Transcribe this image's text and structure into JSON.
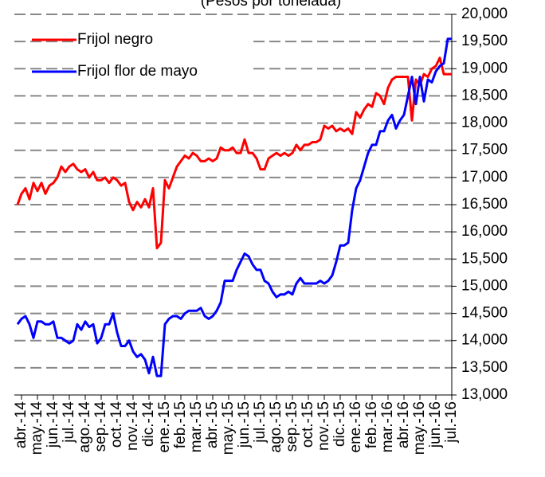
{
  "chart_data": {
    "type": "line",
    "subtitle": "(Pesos por tonelada)",
    "categories": [
      null,
      "abr.-14",
      null,
      null,
      null,
      "may.-14",
      null,
      null,
      null,
      "jun.-14",
      null,
      null,
      null,
      "jul.-14",
      null,
      null,
      null,
      "ago.-14",
      null,
      null,
      null,
      "sep.-14",
      null,
      null,
      null,
      "oct.-14",
      null,
      null,
      null,
      "nov.-14",
      null,
      null,
      null,
      "dic.-14",
      null,
      null,
      null,
      "ene.-15",
      null,
      null,
      null,
      "feb.-15",
      null,
      null,
      null,
      "mar.-15",
      null,
      null,
      null,
      "abr.-15",
      null,
      null,
      null,
      "may.-15",
      null,
      null,
      null,
      "jun.-15",
      null,
      null,
      null,
      "jul.-15",
      null,
      null,
      null,
      "ago.-15",
      null,
      null,
      null,
      "sep.-15",
      null,
      null,
      null,
      "oct.-15",
      null,
      null,
      null,
      "nov.-15",
      null,
      null,
      null,
      "dic.-15",
      null,
      null,
      null,
      "ene.-16",
      null,
      null,
      null,
      "feb.-16",
      null,
      null,
      null,
      "mar.-16",
      null,
      null,
      null,
      "abr.-16",
      null,
      null,
      null,
      "may.-16",
      null,
      null,
      null,
      "jun.-16",
      null,
      null,
      null,
      "jul.-16"
    ],
    "series": [
      {
        "name": "Frijol negro",
        "color": "#ff0000",
        "values": [
          16500,
          16700,
          16800,
          16600,
          16900,
          16750,
          16900,
          16700,
          16850,
          16900,
          17000,
          17200,
          17100,
          17200,
          17250,
          17150,
          17100,
          17150,
          17000,
          17100,
          16950,
          16950,
          17000,
          16900,
          17000,
          16950,
          16850,
          16900,
          16550,
          16400,
          16550,
          16450,
          16600,
          16450,
          16800,
          15700,
          15800,
          16950,
          16800,
          17000,
          17200,
          17300,
          17400,
          17350,
          17450,
          17400,
          17300,
          17300,
          17350,
          17300,
          17350,
          17550,
          17500,
          17500,
          17550,
          17450,
          17450,
          17700,
          17450,
          17450,
          17350,
          17150,
          17150,
          17350,
          17400,
          17450,
          17400,
          17450,
          17400,
          17450,
          17600,
          17500,
          17600,
          17600,
          17650,
          17650,
          17700,
          17950,
          17900,
          17950,
          17850,
          17900,
          17850,
          17900,
          17800,
          18200,
          18100,
          18250,
          18350,
          18300,
          18550,
          18500,
          18350,
          18650,
          18800,
          18850,
          18850,
          18850,
          18850,
          18050,
          18800,
          18700,
          18900,
          18850,
          19000,
          19050,
          19200,
          18900,
          18900,
          18900
        ]
      },
      {
        "name": "Frijol flor de mayo",
        "color": "#0000ff",
        "values": [
          14300,
          14400,
          14450,
          14300,
          14050,
          14350,
          14350,
          14300,
          14300,
          14350,
          14050,
          14050,
          14000,
          13950,
          14000,
          14300,
          14200,
          14350,
          14250,
          14300,
          13950,
          14050,
          14300,
          14300,
          14500,
          14150,
          13900,
          13900,
          14000,
          13800,
          13700,
          13750,
          13650,
          13400,
          13700,
          13350,
          13350,
          14300,
          14400,
          14450,
          14450,
          14400,
          14500,
          14550,
          14550,
          14550,
          14600,
          14450,
          14400,
          14450,
          14550,
          14700,
          15100,
          15100,
          15100,
          15300,
          15450,
          15600,
          15550,
          15400,
          15300,
          15300,
          15100,
          15050,
          14900,
          14800,
          14850,
          14850,
          14900,
          14850,
          15050,
          15150,
          15050,
          15050,
          15050,
          15050,
          15100,
          15050,
          15100,
          15200,
          15450,
          15750,
          15750,
          15800,
          16400,
          16800,
          16950,
          17200,
          17450,
          17600,
          17600,
          17850,
          17850,
          18050,
          18150,
          17900,
          18050,
          18150,
          18500,
          18850,
          18350,
          18850,
          18400,
          18800,
          18750,
          18950,
          19050,
          19100,
          19550,
          19550
        ]
      }
    ],
    "ylim": [
      13000,
      20000
    ],
    "yticks": [
      {
        "value": 13000,
        "label": "13,000"
      },
      {
        "value": 13500,
        "label": "13,500"
      },
      {
        "value": 14000,
        "label": "14,000"
      },
      {
        "value": 14500,
        "label": "14,500"
      },
      {
        "value": 15000,
        "label": "15,000"
      },
      {
        "value": 15500,
        "label": "15,500"
      },
      {
        "value": 16000,
        "label": "16,000"
      },
      {
        "value": 16500,
        "label": "16,500"
      },
      {
        "value": 17000,
        "label": "17,000"
      },
      {
        "value": 17500,
        "label": "17,500"
      },
      {
        "value": 18000,
        "label": "18,000"
      },
      {
        "value": 18500,
        "label": "18,500"
      },
      {
        "value": 19000,
        "label": "19,000"
      },
      {
        "value": 19500,
        "label": "19,500"
      },
      {
        "value": 20000,
        "label": "20,000"
      }
    ],
    "grid": true,
    "legend": "upper left"
  }
}
